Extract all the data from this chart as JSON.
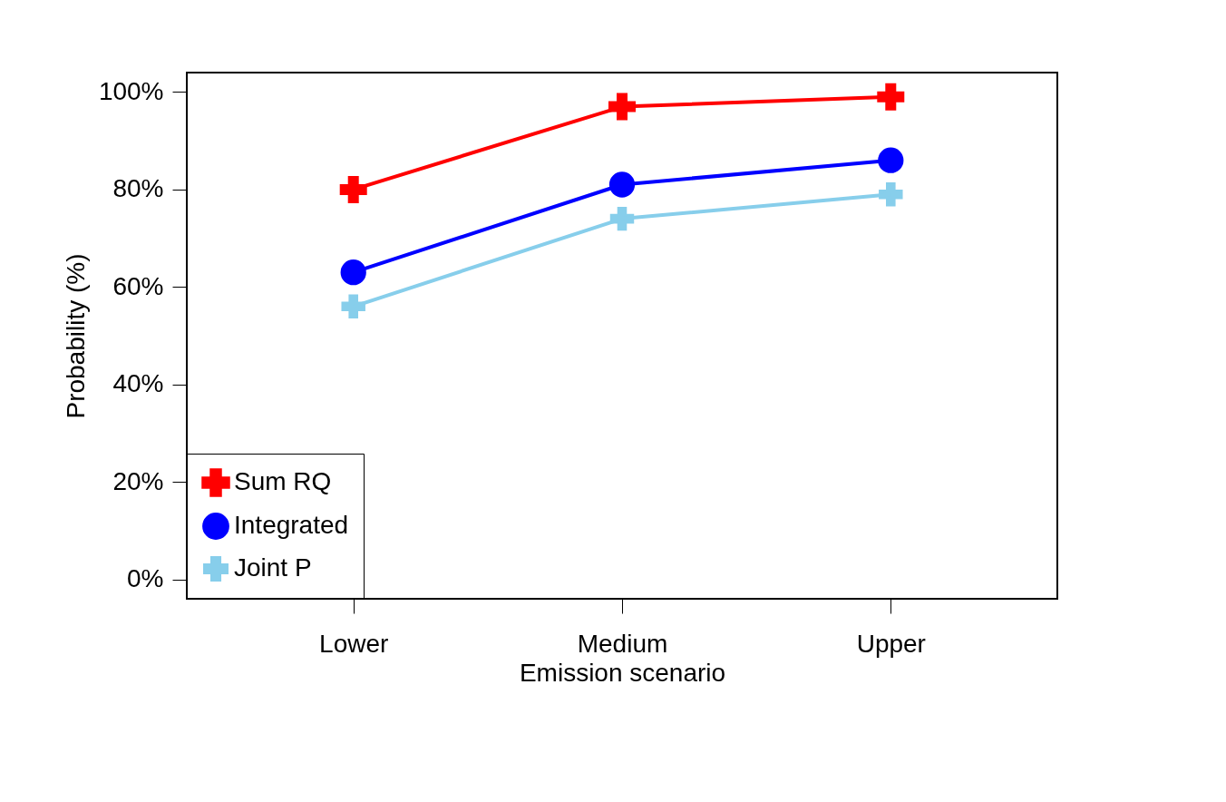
{
  "chart_data": {
    "type": "line",
    "xlabel": "Emission scenario",
    "ylabel": "Probability (%)",
    "categories": [
      "Lower",
      "Medium",
      "Upper"
    ],
    "series": [
      {
        "name": "Sum RQ",
        "color": "#ff0000",
        "marker": "cross",
        "values": [
          80,
          97,
          99
        ]
      },
      {
        "name": "Integrated",
        "color": "#0000ff",
        "marker": "circle",
        "values": [
          63,
          81,
          86
        ]
      },
      {
        "name": "Joint P",
        "color": "#87ceeb",
        "marker": "x",
        "values": [
          56,
          74,
          79
        ]
      }
    ],
    "ylim": [
      -4,
      104
    ],
    "yticks": [
      {
        "value": 0,
        "label": "0%"
      },
      {
        "value": 20,
        "label": "20%"
      },
      {
        "value": 40,
        "label": "40%"
      },
      {
        "value": 60,
        "label": "60%"
      },
      {
        "value": 80,
        "label": "80%"
      },
      {
        "value": 100,
        "label": "100%"
      }
    ],
    "grid": false,
    "legend": "bottom left",
    "line_style": "solid"
  }
}
